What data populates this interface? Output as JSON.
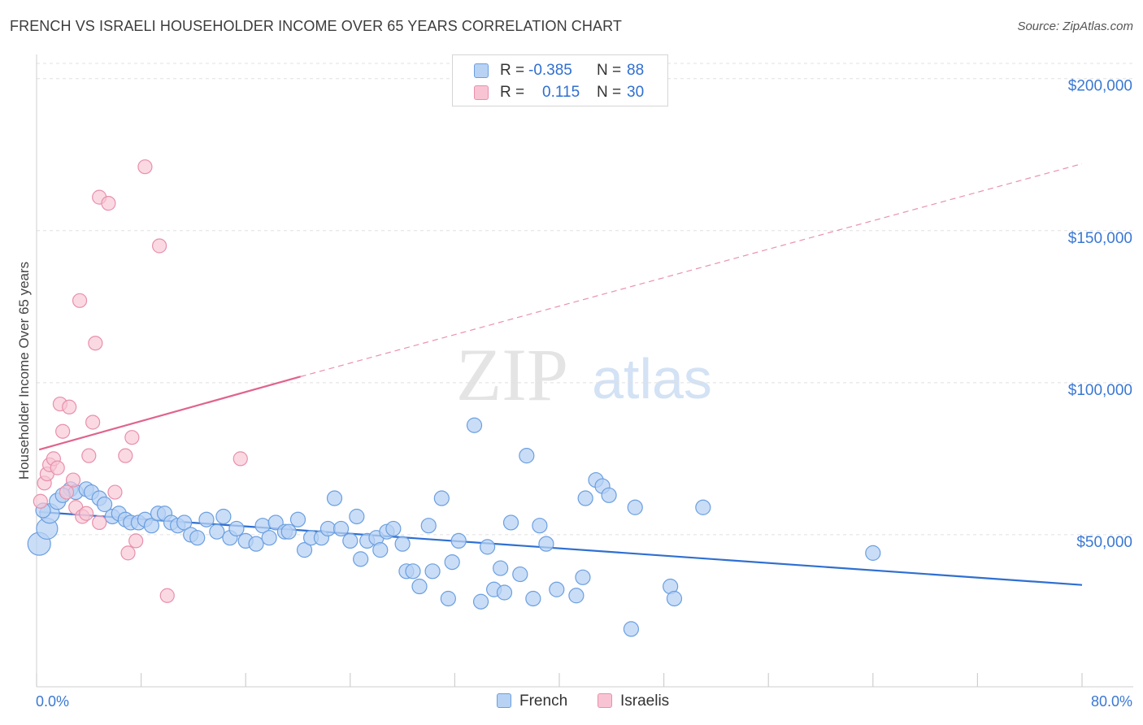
{
  "title": "FRENCH VS ISRAELI HOUSEHOLDER INCOME OVER 65 YEARS CORRELATION CHART",
  "source": "Source: ZipAtlas.com",
  "watermark": {
    "zip": "ZIP",
    "atlas": "atlas"
  },
  "legend": {
    "french": {
      "r_label": "R =",
      "r_value": "-0.385",
      "n_label": "N =",
      "n_value": "88"
    },
    "israelis": {
      "r_label": "R =",
      "r_value": "0.115",
      "n_label": "N =",
      "n_value": "30"
    }
  },
  "colors": {
    "french_fill": "#b8d2f4",
    "french_stroke": "#6a9fe0",
    "french_line": "#2f6fd1",
    "israelis_fill": "#f8c4d4",
    "israelis_stroke": "#e890ab",
    "israelis_line": "#e0648c",
    "axis_label": "#3a78d4",
    "grid": "#e0e0e0"
  },
  "chart_data": {
    "type": "scatter",
    "title": "FRENCH VS ISRAELI HOUSEHOLDER INCOME OVER 65 YEARS CORRELATION CHART",
    "xlabel": "",
    "ylabel": "Householder Income Over 65 years",
    "x_tick_labels": [
      "0.0%",
      "80.0%"
    ],
    "xlim": [
      0,
      80
    ],
    "y_tick_labels": [
      "$50,000",
      "$100,000",
      "$150,000",
      "$200,000"
    ],
    "y_ticks": [
      50000,
      100000,
      150000,
      200000
    ],
    "ylim": [
      0,
      205000
    ],
    "grid": true,
    "legend_position": "top-center",
    "series": [
      {
        "name": "French",
        "points": [
          [
            0.2,
            47000
          ],
          [
            0.8,
            52000
          ],
          [
            1.0,
            57000
          ],
          [
            1.6,
            61000
          ],
          [
            2.6,
            65000
          ],
          [
            3.0,
            64000
          ],
          [
            3.8,
            65000
          ],
          [
            4.2,
            64000
          ],
          [
            4.8,
            62000
          ],
          [
            5.2,
            60000
          ],
          [
            5.8,
            56000
          ],
          [
            6.3,
            57000
          ],
          [
            6.8,
            55000
          ],
          [
            7.2,
            54000
          ],
          [
            7.8,
            54000
          ],
          [
            8.3,
            55000
          ],
          [
            8.8,
            53000
          ],
          [
            9.3,
            57000
          ],
          [
            9.8,
            57000
          ],
          [
            10.3,
            54000
          ],
          [
            10.8,
            53000
          ],
          [
            11.3,
            54000
          ],
          [
            11.8,
            50000
          ],
          [
            12.3,
            49000
          ],
          [
            13.0,
            55000
          ],
          [
            13.8,
            51000
          ],
          [
            14.3,
            56000
          ],
          [
            14.8,
            49000
          ],
          [
            15.3,
            52000
          ],
          [
            16.0,
            48000
          ],
          [
            16.8,
            47000
          ],
          [
            17.3,
            53000
          ],
          [
            17.8,
            49000
          ],
          [
            18.3,
            54000
          ],
          [
            19.0,
            51000
          ],
          [
            19.3,
            51000
          ],
          [
            20.0,
            55000
          ],
          [
            20.5,
            45000
          ],
          [
            21.0,
            49000
          ],
          [
            21.8,
            49000
          ],
          [
            22.3,
            52000
          ],
          [
            22.8,
            62000
          ],
          [
            23.3,
            52000
          ],
          [
            24.0,
            48000
          ],
          [
            24.5,
            56000
          ],
          [
            24.8,
            42000
          ],
          [
            25.3,
            48000
          ],
          [
            26.0,
            49000
          ],
          [
            26.3,
            45000
          ],
          [
            26.8,
            51000
          ],
          [
            27.3,
            52000
          ],
          [
            28.0,
            47000
          ],
          [
            28.3,
            38000
          ],
          [
            28.8,
            38000
          ],
          [
            29.3,
            33000
          ],
          [
            30.0,
            53000
          ],
          [
            30.3,
            38000
          ],
          [
            31.0,
            62000
          ],
          [
            31.5,
            29000
          ],
          [
            31.8,
            41000
          ],
          [
            32.3,
            48000
          ],
          [
            33.5,
            86000
          ],
          [
            34.0,
            28000
          ],
          [
            34.5,
            46000
          ],
          [
            35.0,
            32000
          ],
          [
            35.5,
            39000
          ],
          [
            35.8,
            31000
          ],
          [
            36.3,
            54000
          ],
          [
            37.0,
            37000
          ],
          [
            37.5,
            76000
          ],
          [
            38.0,
            29000
          ],
          [
            38.5,
            53000
          ],
          [
            39.0,
            47000
          ],
          [
            39.8,
            32000
          ],
          [
            41.3,
            30000
          ],
          [
            41.8,
            36000
          ],
          [
            42.0,
            62000
          ],
          [
            42.8,
            68000
          ],
          [
            43.3,
            66000
          ],
          [
            43.8,
            63000
          ],
          [
            45.5,
            19000
          ],
          [
            45.8,
            59000
          ],
          [
            48.5,
            33000
          ],
          [
            48.8,
            29000
          ],
          [
            51.0,
            59000
          ],
          [
            64.0,
            44000
          ],
          [
            0.5,
            58000
          ],
          [
            2.0,
            63000
          ]
        ],
        "trend": {
          "x": [
            0.2,
            80
          ],
          "y": [
            57500,
            33500
          ]
        }
      },
      {
        "name": "Israelis",
        "points": [
          [
            0.3,
            61000
          ],
          [
            0.6,
            67000
          ],
          [
            0.8,
            70000
          ],
          [
            1.0,
            73000
          ],
          [
            1.3,
            75000
          ],
          [
            1.6,
            72000
          ],
          [
            1.8,
            93000
          ],
          [
            2.0,
            84000
          ],
          [
            2.3,
            64000
          ],
          [
            2.5,
            92000
          ],
          [
            2.8,
            68000
          ],
          [
            3.0,
            59000
          ],
          [
            3.3,
            127000
          ],
          [
            3.5,
            56000
          ],
          [
            3.8,
            57000
          ],
          [
            4.0,
            76000
          ],
          [
            4.3,
            87000
          ],
          [
            4.5,
            113000
          ],
          [
            4.8,
            161000
          ],
          [
            4.8,
            54000
          ],
          [
            5.5,
            159000
          ],
          [
            6.0,
            64000
          ],
          [
            6.8,
            76000
          ],
          [
            7.0,
            44000
          ],
          [
            7.3,
            82000
          ],
          [
            7.6,
            48000
          ],
          [
            8.3,
            171000
          ],
          [
            9.4,
            145000
          ],
          [
            10.0,
            30000
          ],
          [
            15.6,
            75000
          ]
        ],
        "trend_solid": {
          "x": [
            0.2,
            20.2
          ],
          "y": [
            78000,
            102000
          ]
        },
        "trend_dashed": {
          "x": [
            20.2,
            80
          ],
          "y": [
            102000,
            172000
          ]
        }
      }
    ]
  },
  "bottom_legend": {
    "french": "French",
    "israelis": "Israelis"
  }
}
